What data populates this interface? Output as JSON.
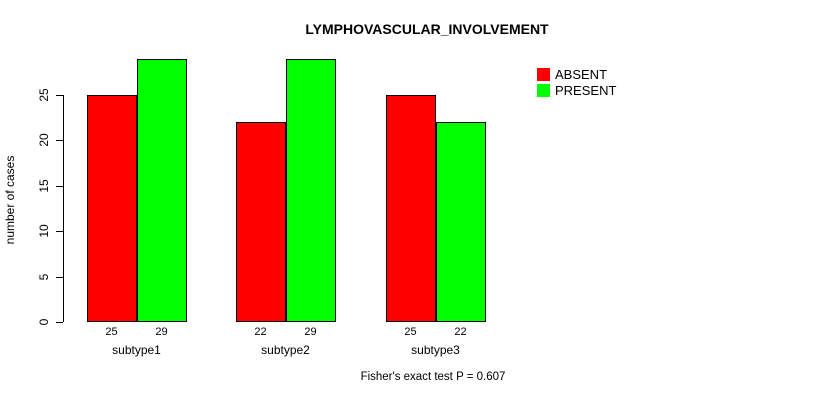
{
  "title": "LYMPHOVASCULAR_INVOLVEMENT",
  "annotation": "Fisher's exact test P = 0.607",
  "chart_data": {
    "type": "bar",
    "title": "LYMPHOVASCULAR_INVOLVEMENT",
    "categories": [
      "subtype1",
      "subtype2",
      "subtype3"
    ],
    "series": [
      {
        "name": "ABSENT",
        "color": "#ff0000",
        "values": [
          25,
          22,
          25
        ]
      },
      {
        "name": "PRESENT",
        "color": "#00ff00",
        "values": [
          29,
          29,
          22
        ]
      }
    ],
    "bar_value_labels_shown": true,
    "xlabel": "",
    "ylabel": "number of cases",
    "yticks": [
      0,
      5,
      10,
      15,
      20,
      25
    ],
    "ylim": [
      0,
      29
    ],
    "grid": false,
    "legend_position": "right",
    "bar_border_color": "#000000",
    "text_color": "#000000",
    "background": "#ffffff",
    "annotation": "Fisher's exact test P = 0.607"
  }
}
